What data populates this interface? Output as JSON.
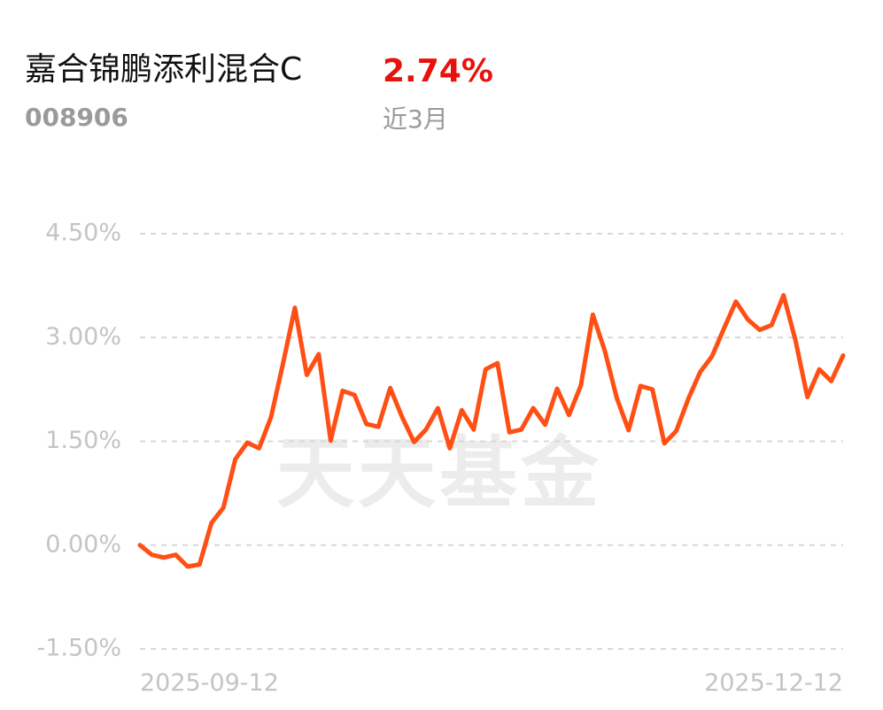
{
  "chart_data": {
    "type": "line",
    "title": "嘉合锦鹏添利混合C",
    "return_label": "2.74%",
    "code": "008906",
    "period": "近3月",
    "watermark": "天天基金",
    "categories": [
      "2025-09-12",
      null,
      null,
      null,
      null,
      null,
      null,
      null,
      null,
      null,
      null,
      null,
      null,
      null,
      null,
      null,
      null,
      null,
      null,
      null,
      null,
      null,
      null,
      null,
      null,
      null,
      null,
      null,
      null,
      null,
      null,
      null,
      null,
      null,
      null,
      null,
      null,
      null,
      null,
      null,
      null,
      null,
      null,
      null,
      null,
      null,
      null,
      null,
      null,
      null,
      null,
      null,
      null,
      null,
      null,
      null,
      null,
      null,
      null,
      "2025-12-12"
    ],
    "series": [
      {
        "color": "#ff4f14",
        "values": [
          0.0,
          -0.14,
          -0.18,
          -0.14,
          -0.31,
          -0.28,
          0.32,
          0.54,
          1.24,
          1.48,
          1.4,
          1.85,
          2.62,
          3.43,
          2.46,
          2.76,
          1.51,
          2.23,
          2.17,
          1.75,
          1.71,
          2.27,
          1.85,
          1.49,
          1.67,
          1.98,
          1.4,
          1.95,
          1.67,
          2.54,
          2.63,
          1.63,
          1.67,
          1.98,
          1.74,
          2.26,
          1.88,
          2.31,
          3.33,
          2.81,
          2.13,
          1.66,
          2.3,
          2.25,
          1.47,
          1.65,
          2.11,
          2.5,
          2.73,
          3.13,
          3.52,
          3.26,
          3.11,
          3.18,
          3.61,
          2.96,
          2.14,
          2.54,
          2.37,
          2.74
        ]
      }
    ],
    "ylim": [
      -1.5,
      4.5
    ],
    "yticks": [
      {
        "value": -1.5,
        "label": "-1.50%"
      },
      {
        "value": 0,
        "label": "0.00%"
      },
      {
        "value": 1.5,
        "label": "1.50%"
      },
      {
        "value": 3,
        "label": "3.00%"
      },
      {
        "value": 4.5,
        "label": "4.50%"
      }
    ],
    "grid": true
  }
}
